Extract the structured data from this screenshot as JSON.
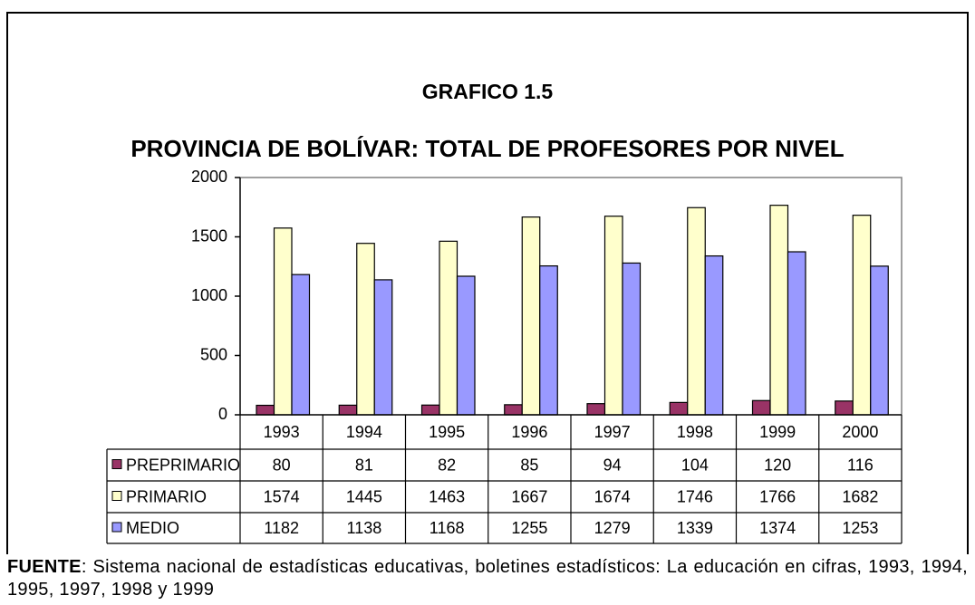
{
  "chart_data": {
    "type": "bar",
    "title": "GRAFICO 1.5",
    "subtitle": "PROVINCIA DE BOLÍVAR: TOTAL DE PROFESORES POR NIVEL",
    "categories": [
      "1993",
      "1994",
      "1995",
      "1996",
      "1997",
      "1998",
      "1999",
      "2000"
    ],
    "series": [
      {
        "name": "PREPRIMARIO",
        "color": "#993366",
        "values": [
          80,
          81,
          82,
          85,
          94,
          104,
          120,
          116
        ]
      },
      {
        "name": "PRIMARIO",
        "color": "#ffffcc",
        "values": [
          1574,
          1445,
          1463,
          1667,
          1674,
          1746,
          1766,
          1682
        ]
      },
      {
        "name": "MEDIO",
        "color": "#9999ff",
        "values": [
          1182,
          1138,
          1168,
          1255,
          1279,
          1339,
          1374,
          1253
        ]
      }
    ],
    "ylim": [
      0,
      2000
    ],
    "yticks": [
      0,
      500,
      1000,
      1500,
      2000
    ],
    "grid": false,
    "source_label": "FUENTE",
    "source_text": ": Sistema nacional de estadísticas educativas, boletines estadísticos: La educación en cifras, 1993, 1994, 1995, 1997, 1998 y 1999"
  }
}
